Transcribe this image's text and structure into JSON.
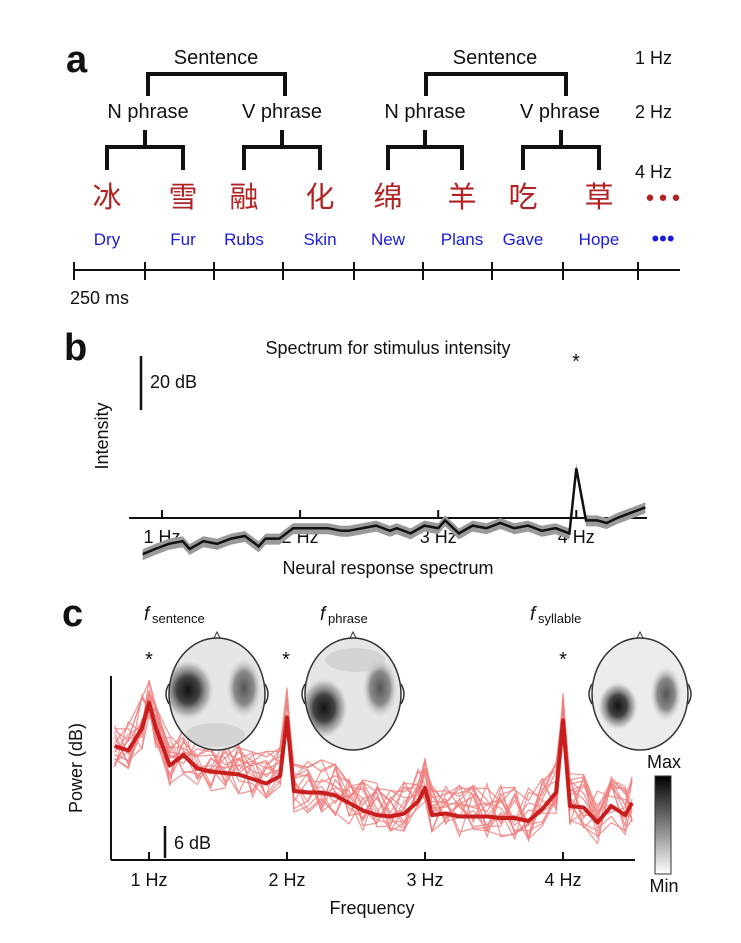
{
  "panel_a": {
    "label": "a",
    "sentence_label": "Sentence",
    "n_phrase_label": "N phrase",
    "v_phrase_label": "V phrase",
    "rate_1hz": "1 Hz",
    "rate_2hz": "2 Hz",
    "rate_4hz": "4 Hz",
    "syllables_cn": [
      "冰",
      "雪",
      "融",
      "化",
      "绵",
      "羊",
      "吃",
      "草"
    ],
    "syllables_en": [
      "Dry",
      "Fur",
      "Rubs",
      "Skin",
      "New",
      "Plans",
      "Gave",
      "Hope"
    ],
    "ellipsis_cn": "•••",
    "ellipsis_en": "•••",
    "time_label": "250 ms",
    "colors": {
      "chinese": "#b22222",
      "english": "#1a1adb",
      "tree": "#111111"
    }
  },
  "panel_b": {
    "label": "b",
    "title": "Spectrum for stimulus intensity",
    "ylabel": "Intensity",
    "xlabel": "Neural response spectrum",
    "scale_label": "20 dB",
    "star": "*",
    "xticks": [
      "1 Hz",
      "2 Hz",
      "3 Hz",
      "4 Hz"
    ]
  },
  "panel_c": {
    "label": "c",
    "ylabel": "Power (dB)",
    "xlabel": "Frequency",
    "scale_label": "6 dB",
    "xticks": [
      "1 Hz",
      "2 Hz",
      "3 Hz",
      "4 Hz"
    ],
    "stars": [
      "*",
      "*",
      "*"
    ],
    "topo_labels": [
      {
        "f": "f",
        "sub": "sentence"
      },
      {
        "f": "f",
        "sub": "phrase"
      },
      {
        "f": "f",
        "sub": "syllable"
      }
    ],
    "colorbar_max": "Max",
    "colorbar_min": "Min",
    "colors": {
      "individual": "#f08080",
      "mean": "#c81e1e"
    }
  },
  "chart_data": [
    {
      "type": "line",
      "title": "Spectrum for stimulus intensity",
      "xlabel": "Neural response spectrum",
      "ylabel": "Intensity",
      "x_unit": "Hz",
      "xlim": [
        0.86,
        4.5
      ],
      "scale_bar_dB": 20,
      "series": [
        {
          "x": [
            0.86,
            0.95,
            1.05,
            1.15,
            1.2,
            1.3,
            1.4,
            1.5,
            1.6,
            1.7,
            1.75,
            1.85,
            1.95,
            2.0,
            2.1,
            2.2,
            2.3,
            2.35,
            2.45,
            2.55,
            2.65,
            2.7,
            2.8,
            2.9,
            3.0,
            3.05,
            3.15,
            3.25,
            3.35,
            3.45,
            3.55,
            3.65,
            3.75,
            3.85,
            3.95,
            4.0,
            4.07,
            4.15,
            4.22,
            4.3,
            4.4,
            4.5
          ],
          "y": [
            -27,
            -25,
            -23,
            -22,
            -25,
            -22,
            -23,
            -21,
            -20,
            -24,
            -21,
            -21,
            -17,
            -17,
            -17,
            -17,
            -18,
            -18,
            -17,
            -16,
            -18,
            -17,
            -19,
            -16,
            -17,
            -14,
            -19,
            -16,
            -17,
            -15,
            -17,
            -16,
            -18,
            -17,
            -19,
            6,
            -14,
            -14,
            -15,
            -13,
            -11,
            -9
          ]
        }
      ]
    },
    {
      "type": "line",
      "xlabel": "Frequency",
      "ylabel": "Power (dB)",
      "x_unit": "Hz",
      "xlim": [
        0.75,
        4.5
      ],
      "scale_bar_dB": 6,
      "series": [
        {
          "x": [
            0.75,
            0.85,
            0.95,
            1.0,
            1.05,
            1.15,
            1.25,
            1.35,
            1.45,
            1.55,
            1.65,
            1.75,
            1.85,
            1.95,
            2.0,
            2.05,
            2.15,
            2.25,
            2.35,
            2.45,
            2.55,
            2.65,
            2.75,
            2.85,
            2.95,
            3.0,
            3.05,
            3.15,
            3.25,
            3.35,
            3.45,
            3.55,
            3.65,
            3.75,
            3.85,
            3.95,
            4.0,
            4.05,
            4.15,
            4.25,
            4.35,
            4.45,
            4.5
          ],
          "y": [
            7.6,
            7.3,
            8.8,
            10.5,
            8.8,
            6.3,
            7.0,
            6.1,
            5.9,
            5.8,
            5.7,
            5.4,
            5.1,
            5.6,
            9.5,
            4.6,
            4.5,
            4.5,
            4.3,
            3.8,
            3.3,
            3.0,
            2.9,
            3.1,
            3.9,
            4.8,
            3.0,
            3.1,
            2.9,
            2.9,
            2.9,
            2.8,
            2.8,
            2.6,
            3.4,
            4.5,
            9.3,
            3.6,
            3.5,
            2.5,
            3.6,
            3.0,
            3.8
          ]
        }
      ]
    }
  ]
}
